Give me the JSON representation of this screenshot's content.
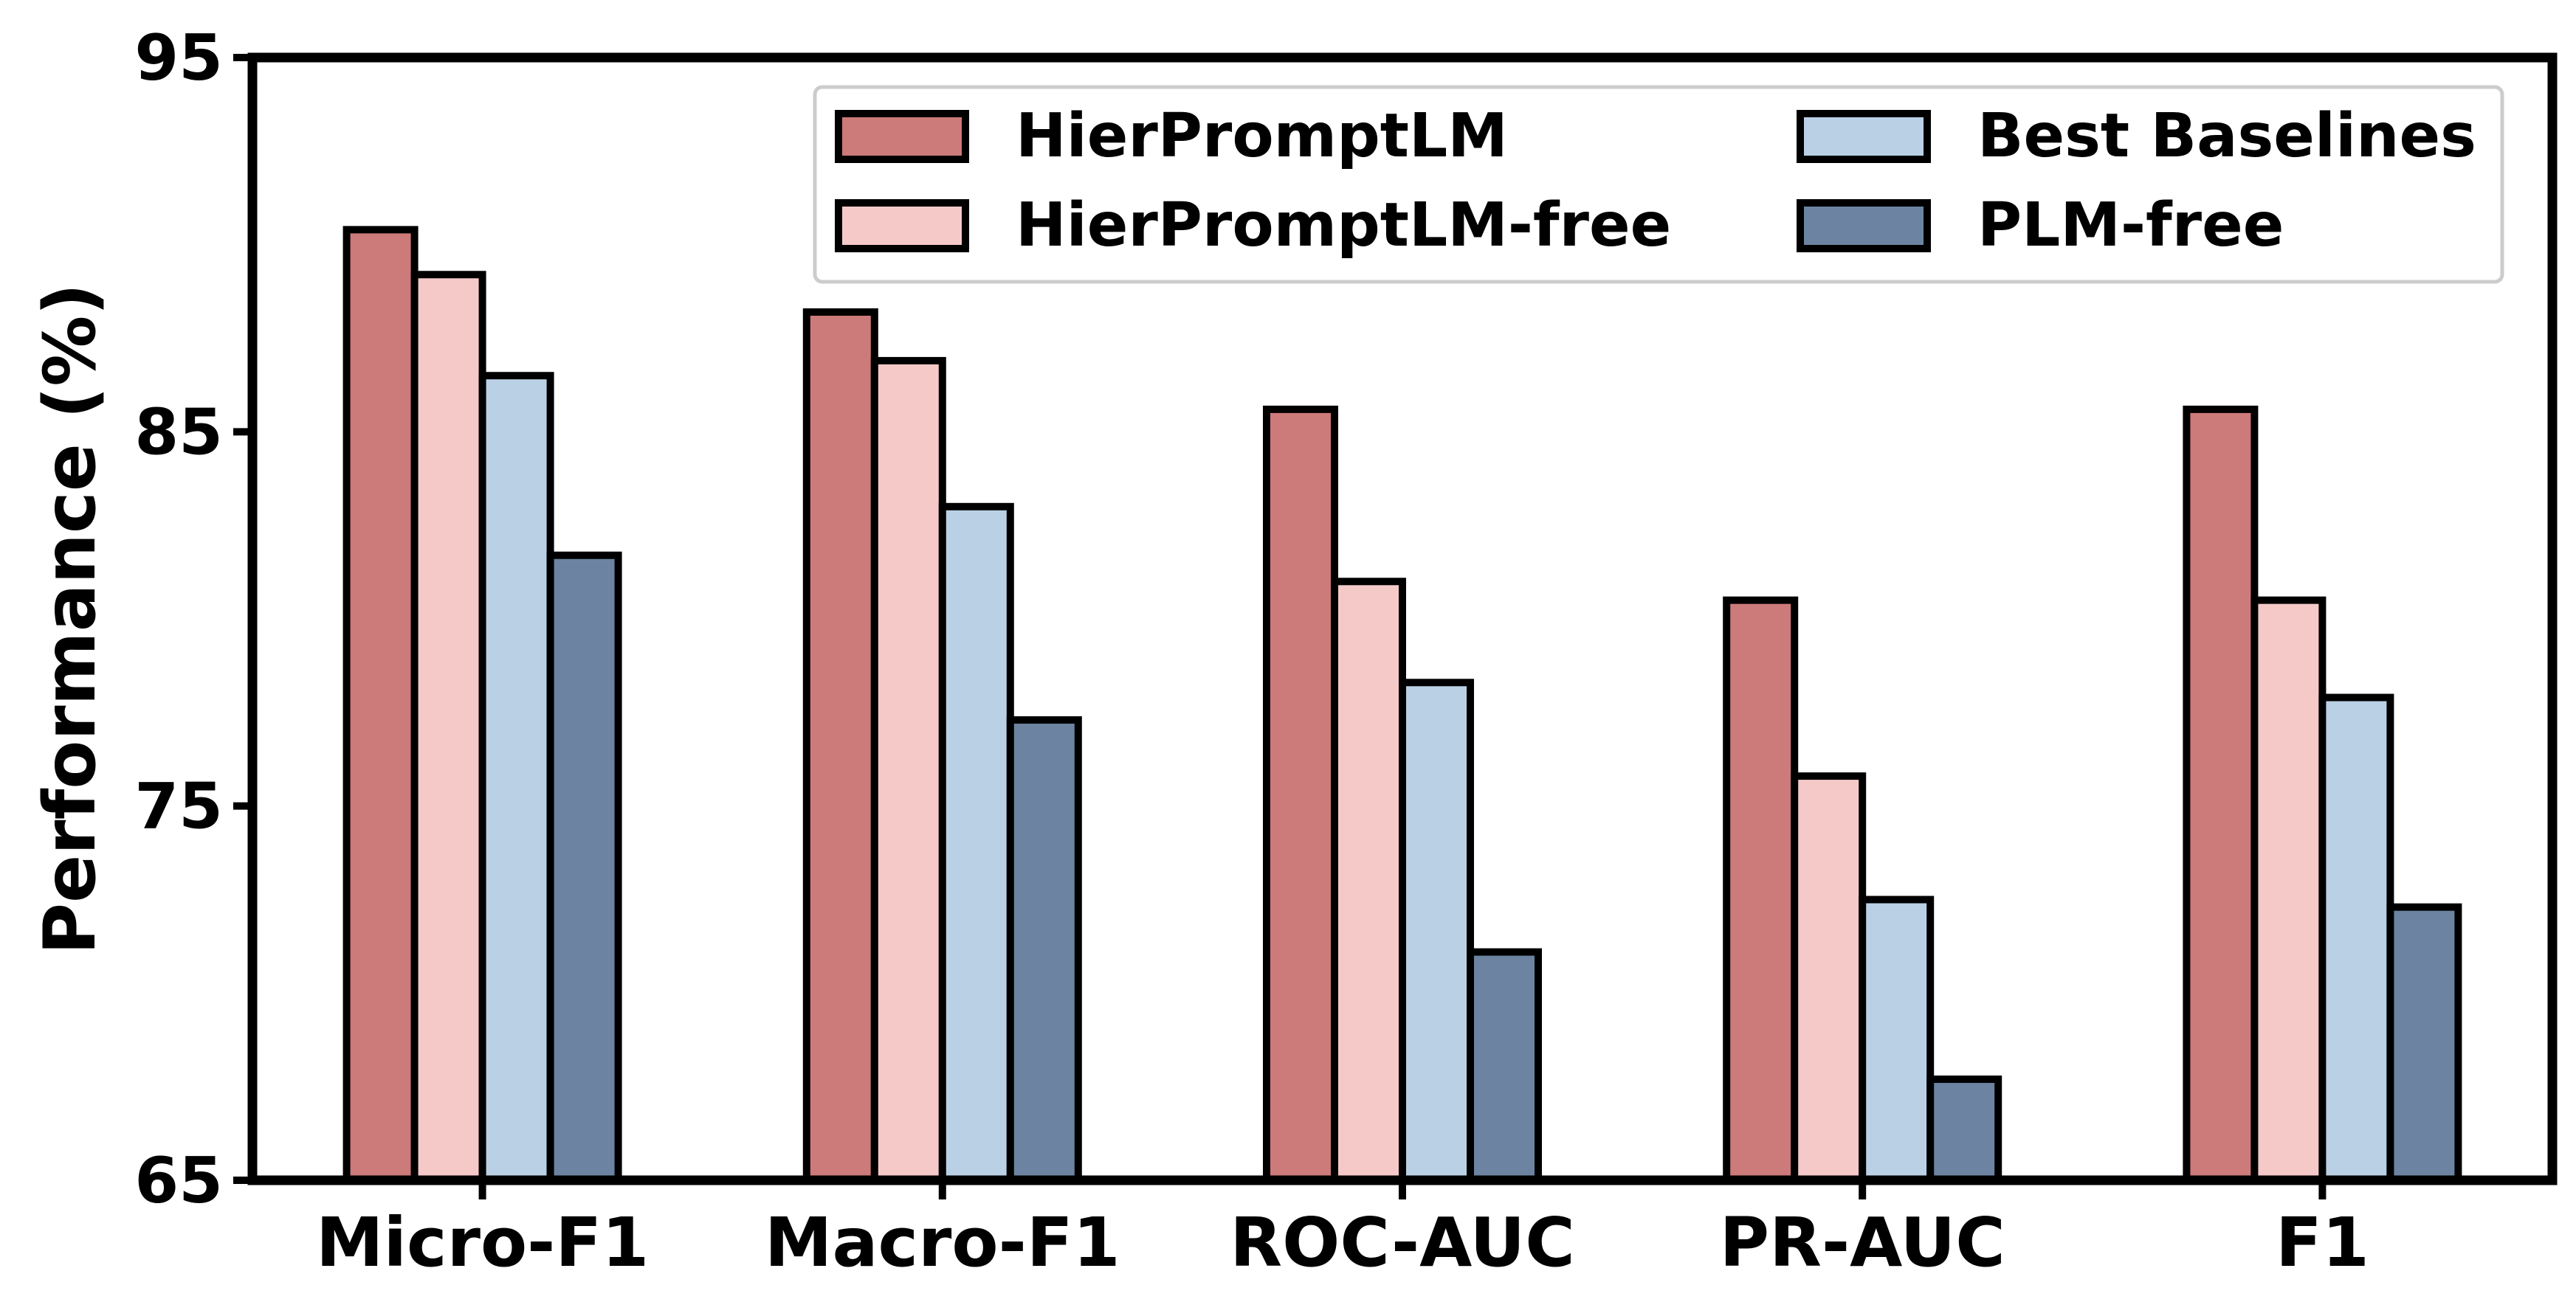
{
  "chart_data": {
    "type": "bar",
    "title": "",
    "xlabel": "",
    "ylabel": "Performance (%)",
    "ylim": [
      65,
      95
    ],
    "yticks": [
      "65",
      "75",
      "85",
      "95"
    ],
    "grid": false,
    "legend_position": "top-right",
    "categories": [
      "Micro-F1",
      "Macro-F1",
      "ROC-AUC",
      "PR-AUC",
      "F1"
    ],
    "series": [
      {
        "name": "HierPromptLM",
        "color": "#cd7a7a",
        "values": [
          90.4,
          88.2,
          85.6,
          80.5,
          85.6
        ]
      },
      {
        "name": "HierPromptLM-free",
        "color": "#f6c9c9",
        "values": [
          89.2,
          86.9,
          81.0,
          75.8,
          80.5
        ]
      },
      {
        "name": "Best Baselines",
        "color": "#bad1e5",
        "values": [
          86.5,
          83.0,
          78.3,
          72.5,
          77.9
        ]
      },
      {
        "name": "PLM-free",
        "color": "#6c84a1",
        "values": [
          81.7,
          77.3,
          71.1,
          67.7,
          72.3
        ]
      }
    ],
    "legend_labels": [
      "HierPromptLM",
      "Best Baselines",
      "HierPromptLM-free",
      "PLM-free"
    ]
  }
}
